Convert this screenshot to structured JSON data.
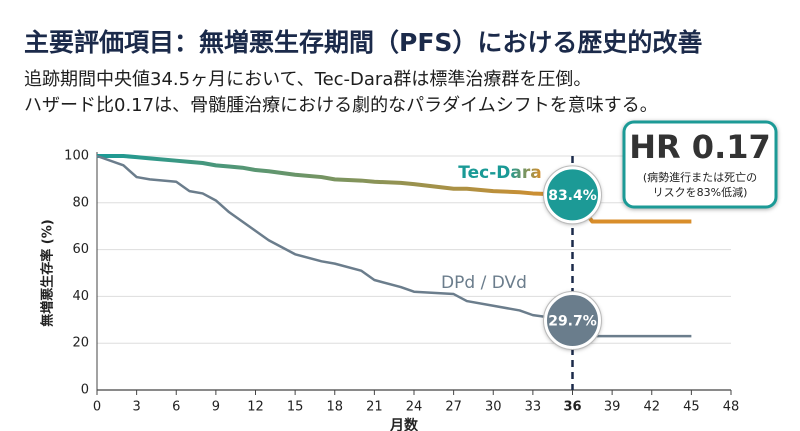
{
  "chart_data": {
    "type": "line",
    "title": "主要評価項目：無増悪生存期間（PFS）における歴史的改善",
    "subtitle": [
      "追跡期間中央値34.5ヶ月において、Tec-Dara群は標準治療群を圧倒。",
      "ハザード比0.17は、骨髄腫治療における劇的なパラダイムシフトを意味する。"
    ],
    "x_label": "月数",
    "y_label": "無増悪生存率 (%)",
    "x": [
      0,
      2,
      3,
      4,
      6,
      7,
      8,
      9,
      10,
      11,
      12,
      13,
      15,
      17,
      18,
      20,
      21,
      23,
      24,
      27,
      28,
      30,
      32,
      33,
      36,
      37.5,
      45
    ],
    "series": [
      {
        "name": "Tec-Dara",
        "color": "#1a9a96",
        "color_end": "#d98e2b",
        "values": [
          100,
          100,
          99.5,
          99,
          98,
          97.5,
          97,
          96,
          95.5,
          95,
          94,
          93.5,
          92,
          91,
          90,
          89.5,
          89,
          88.5,
          88,
          86,
          86,
          85,
          84.5,
          84,
          83.4,
          72,
          72
        ],
        "value_labels": [
          null,
          null,
          null,
          null,
          null,
          null,
          null,
          null,
          null,
          null,
          null,
          null,
          null,
          null,
          null,
          null,
          null,
          null,
          null,
          null,
          null,
          null,
          null,
          null,
          "83.4%",
          null,
          null
        ]
      },
      {
        "name": "DPd / DVd",
        "color": "#6b7d8c",
        "values": [
          100,
          96,
          91,
          90,
          89,
          85,
          84,
          81,
          76,
          72,
          68,
          64,
          58,
          55,
          54,
          51,
          47,
          44,
          42,
          41,
          38,
          36,
          34,
          32,
          29.7,
          23,
          23
        ],
        "value_labels": [
          null,
          null,
          null,
          null,
          null,
          null,
          null,
          null,
          null,
          null,
          null,
          null,
          null,
          null,
          null,
          null,
          null,
          null,
          null,
          null,
          null,
          null,
          null,
          null,
          "29.7%",
          null,
          null
        ]
      }
    ],
    "xlim": [
      0,
      48
    ],
    "xticks": [
      0,
      3,
      6,
      9,
      12,
      15,
      18,
      21,
      24,
      27,
      30,
      33,
      36,
      39,
      42,
      45,
      48
    ],
    "ylim": [
      0,
      100
    ],
    "yticks": [
      0,
      20,
      40,
      60,
      80,
      100
    ],
    "grid": true,
    "reference_line": {
      "x": 36,
      "style": "dashed"
    },
    "callout": {
      "title": "HR 0.17",
      "lines": [
        "(病勢進行または死亡の",
        "リスクを83%低減)"
      ]
    }
  }
}
